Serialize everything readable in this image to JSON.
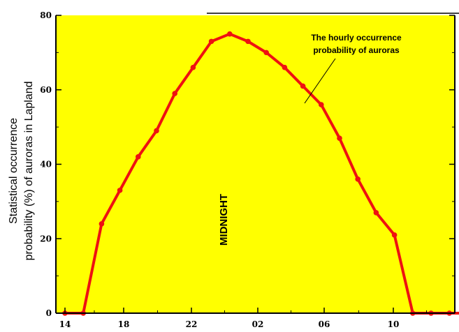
{
  "chart_data": {
    "type": "line",
    "title": "",
    "ylabel_line1": "Statistical occurrence",
    "ylabel_line2": "probability (%)  of auroras in Lapland",
    "xlabel": "",
    "x_ticks": [
      "14",
      "18",
      "22",
      "02",
      "06",
      "10"
    ],
    "y_ticks": [
      "0",
      "20",
      "40",
      "60",
      "80"
    ],
    "ylim": [
      0,
      80
    ],
    "grid": false,
    "background_color": "#ffff00",
    "series": [
      {
        "color": "#ee1111",
        "points": [
          {
            "x": "14",
            "y": 0
          },
          {
            "x": "15",
            "y": 0
          },
          {
            "x": "16",
            "y": 24
          },
          {
            "x": "17",
            "y": 33
          },
          {
            "x": "18",
            "y": 42
          },
          {
            "x": "19",
            "y": 49
          },
          {
            "x": "20",
            "y": 59
          },
          {
            "x": "21",
            "y": 66
          },
          {
            "x": "22",
            "y": 73
          },
          {
            "x": "23",
            "y": 75
          },
          {
            "x": "00",
            "y": 73
          },
          {
            "x": "01",
            "y": 70
          },
          {
            "x": "02",
            "y": 66
          },
          {
            "x": "03",
            "y": 61
          },
          {
            "x": "04",
            "y": 56
          },
          {
            "x": "05",
            "y": 47
          },
          {
            "x": "06",
            "y": 36
          },
          {
            "x": "07",
            "y": 27
          },
          {
            "x": "08",
            "y": 21
          },
          {
            "x": "09",
            "y": 0
          },
          {
            "x": "10",
            "y": 0
          },
          {
            "x": "11",
            "y": 0
          },
          {
            "x": "12",
            "y": 0
          },
          {
            "x": "13",
            "y": 0
          }
        ]
      }
    ],
    "annotations": {
      "curve_label_line1": "The hourly occurrence",
      "curve_label_line2": "probability of auroras",
      "midnight_label": "MIDNIGHT"
    }
  }
}
